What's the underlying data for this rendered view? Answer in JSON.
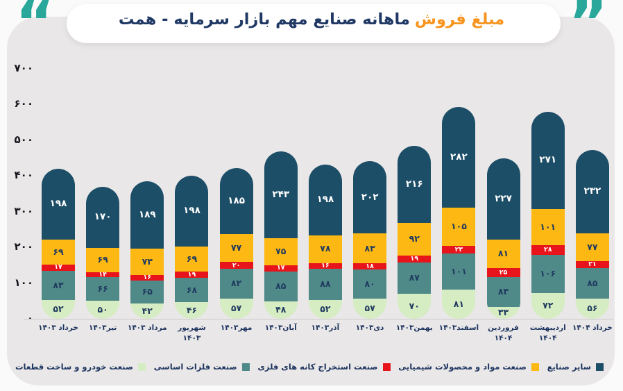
{
  "title": {
    "highlight": "مبلغ فروش",
    "rest": "ماهانه صنایع مهم بازار سرمایه - همت",
    "quote_open": "“",
    "quote_close": "”"
  },
  "colors": {
    "accent_orange": "#f7941d",
    "navy": "#1f3864",
    "quote_teal": "#2aa79b",
    "card_bg": "#e9e7e7",
    "axis_line": "#cbc8c8"
  },
  "chart_data": {
    "type": "bar",
    "stacked": true,
    "title": "مبلغ فروش ماهانه صنایع مهم بازار سرمایه - همت",
    "unit": "همت",
    "ylim": [
      0,
      700
    ],
    "grid": false,
    "legend_position": "bottom",
    "yticks": [
      "۷۰۰",
      "۶۰۰",
      "۵۰۰",
      "۴۰۰",
      "۳۰۰",
      "۲۰۰",
      "۱۰۰",
      "۰"
    ],
    "ytick_values": [
      700,
      600,
      500,
      400,
      300,
      200,
      100,
      0
    ],
    "categories": [
      "خرداد ۱۴۰۳",
      "تیر۱۴۰۳",
      "مرداد ۱۴۰۳",
      "شهریور ۱۴۰۳",
      "مهر۱۴۰۳",
      "آبان۱۴۰۳",
      "آذر۱۴۰۳",
      "دی۱۴۰۳",
      "بهمن۱۴۰۳",
      "اسفند۱۴۰۳",
      "فروردین ۱۴۰۴",
      "اردیبهشت ۱۴۰۴",
      "خرداد ۱۴۰۴"
    ],
    "series": [
      {
        "key": "auto",
        "name": "صنعت خودرو و ساخت قطعات",
        "color": "#d6ecc3",
        "label_color": "#1f3a5f",
        "values": [
          52,
          50,
          42,
          46,
          57,
          48,
          52,
          57,
          70,
          81,
          33,
          72,
          56
        ],
        "value_labels": [
          "۵۲",
          "۵۰",
          "۴۲",
          "۴۶",
          "۵۷",
          "۴۸",
          "۵۲",
          "۵۷",
          "۷۰",
          "۸۱",
          "۳۳",
          "۷۲",
          "۵۶"
        ]
      },
      {
        "key": "metals",
        "name": "صنعت فلزات اساسی",
        "color": "#4f8a89",
        "label_color": "#1f3a5f",
        "values": [
          83,
          66,
          65,
          68,
          82,
          85,
          88,
          80,
          87,
          101,
          83,
          106,
          85
        ],
        "value_labels": [
          "۸۳",
          "۶۶",
          "۶۵",
          "۶۸",
          "۸۲",
          "۸۵",
          "۸۸",
          "۸۰",
          "۸۷",
          "۱۰۱",
          "۸۳",
          "۱۰۶",
          "۸۵"
        ]
      },
      {
        "key": "mining",
        "name": "صنعت استخراج کانه های فلزی",
        "color": "#e8141b",
        "label_color": "#ffffff",
        "values": [
          17,
          14,
          16,
          19,
          20,
          17,
          16,
          18,
          19,
          23,
          25,
          28,
          21
        ],
        "value_labels": [
          "۱۷",
          "۱۴",
          "۱۶",
          "۱۹",
          "۲۰",
          "۱۷",
          "۱۶",
          "۱۸",
          "۱۹",
          "۲۳",
          "۲۵",
          "۲۸",
          "۲۱"
        ]
      },
      {
        "key": "chemicals",
        "name": "صنعت مواد و محصولات شیمیایی",
        "color": "#fdb813",
        "label_color": "#1f3a5f",
        "values": [
          69,
          69,
          73,
          69,
          77,
          75,
          78,
          83,
          92,
          105,
          81,
          101,
          77
        ],
        "value_labels": [
          "۶۹",
          "۶۹",
          "۷۳",
          "۶۹",
          "۷۷",
          "۷۵",
          "۷۸",
          "۸۳",
          "۹۲",
          "۱۰۵",
          "۸۱",
          "۱۰۱",
          "۷۷"
        ]
      },
      {
        "key": "other",
        "name": "سایر صنایع",
        "color": "#1d4e68",
        "label_color": "#ffffff",
        "values": [
          198,
          170,
          189,
          198,
          185,
          243,
          198,
          202,
          216,
          282,
          227,
          271,
          232
        ],
        "value_labels": [
          "۱۹۸",
          "۱۷۰",
          "۱۸۹",
          "۱۹۸",
          "۱۸۵",
          "۲۴۳",
          "۱۹۸",
          "۲۰۲",
          "۲۱۶",
          "۲۸۲",
          "۲۲۷",
          "۲۷۱",
          "۲۳۲"
        ]
      }
    ],
    "legend_rtl_order": [
      {
        "label": "سایر صنایع",
        "color": "#1d4e68"
      },
      {
        "label": "صنعت مواد و محصولات شیمیایی",
        "color": "#fdb813"
      },
      {
        "label": "صنعت استخراج کانه های فلزی",
        "color": "#e8141b"
      },
      {
        "label": "صنعت فلزات اساسی",
        "color": "#4f8a89"
      },
      {
        "label": "صنعت خودرو و ساخت قطعات",
        "color": "#d6ecc3"
      }
    ]
  }
}
